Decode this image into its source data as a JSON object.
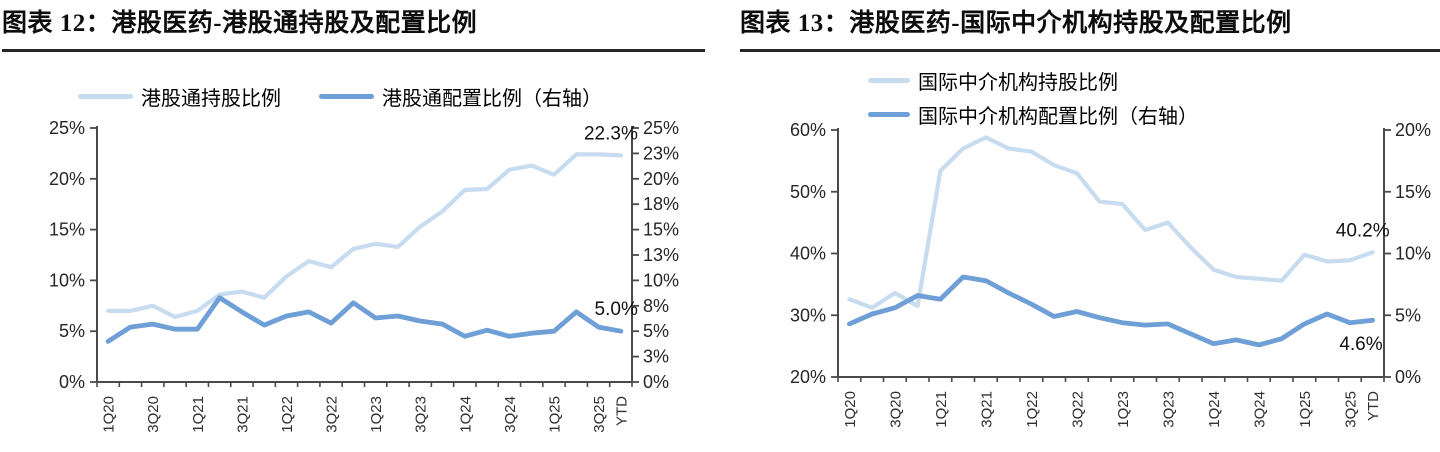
{
  "page": {
    "background": "#ffffff"
  },
  "chart_data": [
    {
      "type": "line",
      "title": "图表 12：港股医药-港股通持股及配置比例",
      "legend_position": "top",
      "grid": false,
      "categories": [
        "1Q20",
        "2Q20",
        "3Q20",
        "4Q20",
        "1Q21",
        "2Q21",
        "3Q21",
        "4Q21",
        "1Q22",
        "2Q22",
        "3Q22",
        "4Q22",
        "1Q23",
        "2Q23",
        "3Q23",
        "4Q23",
        "1Q24",
        "2Q24",
        "3Q24",
        "4Q24",
        "1Q25",
        "2Q25",
        "3Q25",
        "YTD"
      ],
      "x_tick_labels": [
        "1Q20",
        "3Q20",
        "1Q21",
        "3Q21",
        "1Q22",
        "3Q22",
        "1Q23",
        "3Q23",
        "1Q24",
        "3Q24",
        "1Q25",
        "3Q25",
        "YTD"
      ],
      "left_axis": {
        "min": 0,
        "max": 25,
        "tick_labels": [
          "25%",
          "20%",
          "15%",
          "10%",
          "5%",
          "0%"
        ]
      },
      "right_axis": {
        "min": 0,
        "max": 25,
        "tick_labels": [
          "25%",
          "23%",
          "20%",
          "18%",
          "15%",
          "13%",
          "10%",
          "8%",
          "5%",
          "3%",
          "0%"
        ]
      },
      "series": [
        {
          "name": "港股通持股比例",
          "axis": "left",
          "color": "#c8dcf0",
          "values": [
            7.0,
            7.0,
            7.5,
            6.4,
            7.0,
            8.6,
            8.9,
            8.3,
            10.4,
            11.9,
            11.3,
            13.1,
            13.6,
            13.3,
            15.3,
            16.8,
            18.9,
            19.0,
            20.9,
            21.3,
            20.4,
            22.4,
            22.4,
            22.3
          ]
        },
        {
          "name": "港股通配置比例（右轴）",
          "axis": "right",
          "color": "#6e9fd6",
          "values": [
            4.0,
            5.4,
            5.7,
            5.2,
            5.2,
            8.3,
            6.9,
            5.6,
            6.5,
            6.9,
            5.8,
            7.8,
            6.3,
            6.5,
            6.0,
            5.7,
            4.5,
            5.1,
            4.5,
            4.8,
            5.0,
            6.9,
            5.4,
            5.0
          ]
        }
      ],
      "annotations": [
        {
          "text": "22.3%",
          "series": 0,
          "placement": "above-end"
        },
        {
          "text": "5.0%",
          "series": 1,
          "placement": "above-end"
        }
      ]
    },
    {
      "type": "line",
      "title": "图表 13：港股医药-国际中介机构持股及配置比例",
      "legend_position": "top",
      "grid": false,
      "categories": [
        "1Q20",
        "2Q20",
        "3Q20",
        "4Q20",
        "1Q21",
        "2Q21",
        "3Q21",
        "4Q21",
        "1Q22",
        "2Q22",
        "3Q22",
        "4Q22",
        "1Q23",
        "2Q23",
        "3Q23",
        "4Q23",
        "1Q24",
        "2Q24",
        "3Q24",
        "4Q24",
        "1Q25",
        "2Q25",
        "3Q25",
        "YTD"
      ],
      "x_tick_labels": [
        "1Q20",
        "3Q20",
        "1Q21",
        "3Q21",
        "1Q22",
        "3Q22",
        "1Q23",
        "3Q23",
        "1Q24",
        "3Q24",
        "1Q25",
        "3Q25",
        "YTD"
      ],
      "left_axis": {
        "min": 20,
        "max": 60,
        "tick_labels": [
          "60%",
          "50%",
          "40%",
          "30%",
          "20%"
        ]
      },
      "right_axis": {
        "min": 0,
        "max": 20,
        "tick_labels": [
          "20%",
          "15%",
          "10%",
          "5%",
          "0%"
        ]
      },
      "series": [
        {
          "name": "国际中介机构持股比例",
          "axis": "left",
          "color": "#c8dcf0",
          "values": [
            32.6,
            31.2,
            33.6,
            31.5,
            53.4,
            57.0,
            58.8,
            57.0,
            56.5,
            54.3,
            53.0,
            48.4,
            48.0,
            43.8,
            45.0,
            41.0,
            37.4,
            36.2,
            35.9,
            35.6,
            39.8,
            38.7,
            38.9,
            40.2
          ]
        },
        {
          "name": "国际中介机构配置比例（右轴）",
          "axis": "right",
          "color": "#6e9fd6",
          "values": [
            4.3,
            5.1,
            5.6,
            6.6,
            6.3,
            8.1,
            7.8,
            6.8,
            5.9,
            4.9,
            5.3,
            4.8,
            4.4,
            4.2,
            4.3,
            3.5,
            2.7,
            3.0,
            2.6,
            3.1,
            4.3,
            5.1,
            4.4,
            4.6
          ]
        }
      ],
      "annotations": [
        {
          "text": "40.2%",
          "series": 0,
          "placement": "above-end"
        },
        {
          "text": "4.6%",
          "series": 1,
          "placement": "below-end"
        }
      ]
    }
  ]
}
